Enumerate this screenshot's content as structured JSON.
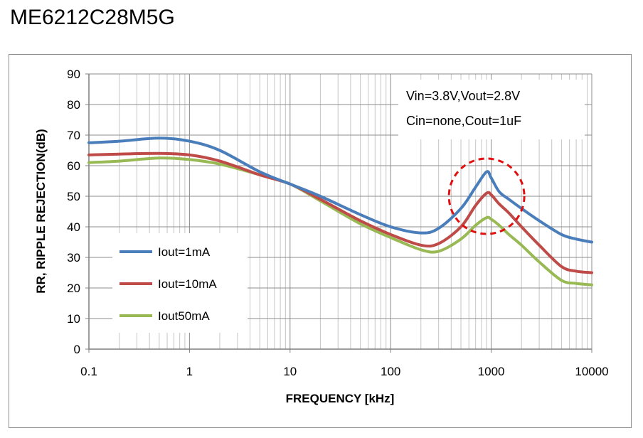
{
  "page": {
    "title": "ME6212C28M5G"
  },
  "chart_data": {
    "type": "line",
    "x_scale": "log",
    "xlabel": "FREQUENCY [kHz]",
    "ylabel": "RR, RIPPLE REJECTION(dB)",
    "xlim": [
      0.1,
      10000
    ],
    "ylim": [
      0,
      90
    ],
    "x_ticks": [
      0.1,
      1,
      10,
      100,
      1000,
      10000
    ],
    "x_tick_labels": [
      "0.1",
      "1",
      "10",
      "100",
      "1000",
      "10000"
    ],
    "y_ticks": [
      0,
      10,
      20,
      30,
      40,
      50,
      60,
      70,
      80,
      90
    ],
    "y_tick_labels": [
      "0",
      "10",
      "20",
      "30",
      "40",
      "50",
      "60",
      "70",
      "80",
      "90"
    ],
    "grid": true,
    "annotations": [
      "Vin=3.8V,Vout=2.8V",
      "Cin=none,Cout=1uF"
    ],
    "highlight": {
      "type": "dashed-circle",
      "color": "#e01010",
      "center_x": 900,
      "center_y": 50
    },
    "series": [
      {
        "name": "Iout=1mA",
        "color": "#4a7ebb",
        "x": [
          0.1,
          0.2,
          0.5,
          1,
          2,
          5,
          10,
          20,
          50,
          100,
          200,
          300,
          500,
          700,
          900,
          1000,
          1200,
          1500,
          2000,
          3000,
          5000,
          7000,
          10000
        ],
        "y": [
          67.5,
          68.0,
          69.0,
          68.0,
          65.0,
          58.0,
          54.0,
          50.0,
          44.0,
          40.0,
          38.0,
          39.5,
          46.0,
          53.0,
          58.0,
          56.0,
          51.5,
          49.0,
          46.0,
          42.0,
          37.5,
          36.0,
          35.0
        ]
      },
      {
        "name": "Iout=10mA",
        "color": "#be4b48",
        "x": [
          0.1,
          0.2,
          0.5,
          1,
          2,
          5,
          10,
          20,
          50,
          100,
          200,
          300,
          500,
          700,
          900,
          1000,
          1200,
          1500,
          2000,
          3000,
          5000,
          7000,
          10000
        ],
        "y": [
          63.5,
          63.8,
          64.0,
          63.5,
          61.5,
          57.0,
          54.0,
          49.0,
          42.0,
          37.5,
          34.0,
          34.5,
          40.0,
          47.0,
          51.0,
          50.5,
          47.5,
          44.5,
          40.0,
          34.0,
          27.0,
          25.5,
          25.0
        ]
      },
      {
        "name": "Iout50mA",
        "color": "#98b954",
        "x": [
          0.1,
          0.2,
          0.5,
          1,
          2,
          5,
          10,
          20,
          50,
          100,
          200,
          300,
          500,
          700,
          900,
          1000,
          1200,
          1500,
          2000,
          3000,
          5000,
          7000,
          10000
        ],
        "y": [
          61.0,
          61.5,
          62.5,
          62.0,
          60.5,
          57.0,
          54.0,
          48.5,
          41.0,
          36.5,
          32.5,
          32.0,
          36.0,
          40.5,
          43.0,
          42.5,
          40.5,
          37.5,
          34.0,
          28.5,
          22.5,
          21.5,
          21.0
        ]
      }
    ]
  }
}
